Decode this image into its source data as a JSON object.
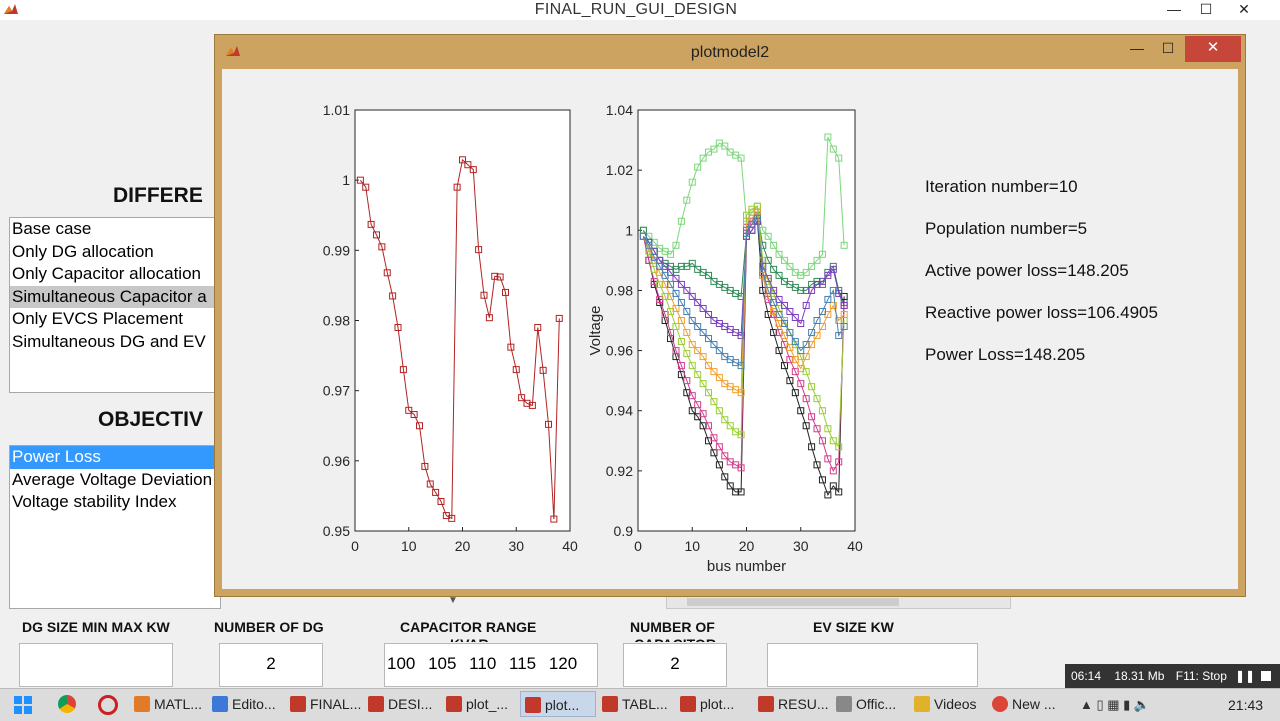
{
  "main_window": {
    "title": "FINAL_RUN_GUI_DESIGN",
    "minimize": "—",
    "maximize": "☐",
    "close": "✕"
  },
  "cases_heading": "DIFFERE",
  "cases": [
    "Base case",
    "Only DG allocation",
    "Only Capacitor allocation",
    "Simultaneous Capacitor a",
    "Only EVCS Placement",
    "Simultaneous DG and EV"
  ],
  "objective_heading": "OBJECTIV",
  "objectives": [
    "Power Loss",
    "Average Voltage Deviation",
    "Voltage stability Index"
  ],
  "fields": {
    "dg_size_label": "DG SIZE MIN MAX KW",
    "dg_size_value": "",
    "num_dg_label": "NUMBER OF DG",
    "num_dg_value": "2",
    "cap_range_label": "CAPACITOR RANGE",
    "cap_range_label2": "KVAR",
    "cap_range_value": "100 105 110 115 120",
    "num_cap_label": "NUMBER OF",
    "num_cap_label2": "CAPACITOR",
    "num_cap_value": "2",
    "ev_size_label": "EV SIZE KW",
    "ev_size_value": ""
  },
  "plot_window": {
    "title": "plotmodel2",
    "info": [
      "Iteration number=10",
      "Population number=5",
      "Active power loss=148.205",
      "Reactive power loss=106.4905",
      "Power Loss=148.205"
    ]
  },
  "chart_data": [
    {
      "type": "line",
      "title": "",
      "xlabel": "",
      "ylabel": "",
      "xlim": [
        0,
        40
      ],
      "ylim": [
        0.95,
        1.01
      ],
      "xticks": [
        "0",
        "10",
        "20",
        "30",
        "40"
      ],
      "yticks": [
        "0.95",
        "0.96",
        "0.97",
        "0.98",
        "0.99",
        "1",
        "1.01"
      ],
      "marker": "square",
      "color": "#b22222",
      "series": [
        {
          "x": [
            1,
            2,
            3,
            4,
            5,
            6,
            7,
            8,
            9,
            10,
            11,
            12,
            13,
            14,
            15,
            16,
            17,
            18,
            19,
            20,
            21,
            22,
            23,
            24,
            25,
            26,
            27,
            28,
            29,
            30,
            31,
            32,
            33,
            34,
            35,
            36,
            37,
            38
          ],
          "y": [
            1.0,
            0.999,
            0.9937,
            0.9922,
            0.9905,
            0.9868,
            0.9835,
            0.979,
            0.973,
            0.9672,
            0.9666,
            0.965,
            0.9592,
            0.9567,
            0.9555,
            0.9542,
            0.9522,
            0.9518,
            0.999,
            1.0029,
            1.0022,
            1.0015,
            0.9901,
            0.9836,
            0.9804,
            0.9863,
            0.9862,
            0.984,
            0.9762,
            0.973,
            0.969,
            0.9682,
            0.9679,
            0.979,
            0.9729,
            0.9652,
            0.9517,
            0.9803
          ]
        }
      ]
    },
    {
      "type": "line",
      "title": "",
      "xlabel": "bus number",
      "ylabel": "Voltage",
      "xlim": [
        0,
        40
      ],
      "ylim": [
        0.9,
        1.04
      ],
      "xticks": [
        "0",
        "10",
        "20",
        "30",
        "40"
      ],
      "yticks": [
        "0.9",
        "0.92",
        "0.94",
        "0.96",
        "0.98",
        "1",
        "1.02",
        "1.04"
      ],
      "marker": "square",
      "series": [
        {
          "color": "#7cd67c",
          "y": [
            1.0,
            0.998,
            0.996,
            0.994,
            0.993,
            0.992,
            0.995,
            1.003,
            1.01,
            1.016,
            1.021,
            1.024,
            1.026,
            1.027,
            1.029,
            1.028,
            1.026,
            1.025,
            1.024,
            1.003,
            1.006,
            1.008,
            1.0,
            0.998,
            0.995,
            0.992,
            0.99,
            0.988,
            0.986,
            0.985,
            0.986,
            0.988,
            0.99,
            0.992,
            1.031,
            1.027,
            1.024,
            0.995
          ]
        },
        {
          "color": "#2e8b57",
          "y": [
            1.0,
            0.996,
            0.993,
            0.99,
            0.989,
            0.988,
            0.987,
            0.988,
            0.988,
            0.989,
            0.987,
            0.986,
            0.985,
            0.983,
            0.982,
            0.981,
            0.98,
            0.979,
            0.978,
            0.999,
            1.002,
            1.005,
            0.995,
            0.99,
            0.987,
            0.985,
            0.983,
            0.982,
            0.981,
            0.98,
            0.98,
            0.982,
            0.983,
            0.982,
            0.986,
            0.988,
            0.98,
            0.976
          ]
        },
        {
          "color": "#222222",
          "y": [
            0.998,
            0.99,
            0.982,
            0.976,
            0.97,
            0.964,
            0.958,
            0.952,
            0.946,
            0.94,
            0.938,
            0.935,
            0.93,
            0.926,
            0.922,
            0.918,
            0.915,
            0.913,
            0.913,
            0.998,
            1.0,
            1.003,
            0.98,
            0.972,
            0.966,
            0.96,
            0.955,
            0.95,
            0.946,
            0.94,
            0.935,
            0.928,
            0.922,
            0.917,
            0.912,
            0.915,
            0.913,
            0.978
          ]
        },
        {
          "color": "#d23c8c",
          "y": [
            0.998,
            0.99,
            0.983,
            0.977,
            0.972,
            0.966,
            0.96,
            0.955,
            0.95,
            0.945,
            0.942,
            0.939,
            0.935,
            0.931,
            0.928,
            0.925,
            0.923,
            0.922,
            0.921,
            1.001,
            1.003,
            1.006,
            0.985,
            0.977,
            0.972,
            0.966,
            0.962,
            0.957,
            0.953,
            0.949,
            0.944,
            0.938,
            0.934,
            0.93,
            0.924,
            0.92,
            0.923,
            0.975
          ]
        },
        {
          "color": "#9acd32",
          "y": [
            0.998,
            0.993,
            0.987,
            0.982,
            0.978,
            0.973,
            0.968,
            0.963,
            0.959,
            0.955,
            0.952,
            0.949,
            0.946,
            0.943,
            0.94,
            0.937,
            0.935,
            0.933,
            0.932,
            1.005,
            1.007,
            1.008,
            0.99,
            0.983,
            0.979,
            0.974,
            0.97,
            0.966,
            0.962,
            0.958,
            0.953,
            0.948,
            0.944,
            0.94,
            0.934,
            0.93,
            0.928,
            0.97
          ]
        },
        {
          "color": "#7b3fbf",
          "y": [
            0.998,
            0.996,
            0.993,
            0.99,
            0.988,
            0.986,
            0.984,
            0.982,
            0.98,
            0.978,
            0.976,
            0.974,
            0.972,
            0.97,
            0.969,
            0.968,
            0.967,
            0.966,
            0.965,
            0.998,
            1.0,
            1.003,
            0.988,
            0.984,
            0.98,
            0.977,
            0.975,
            0.973,
            0.971,
            0.969,
            0.975,
            0.98,
            0.982,
            0.983,
            0.985,
            0.987,
            0.979,
            0.975
          ]
        },
        {
          "color": "#f0a030",
          "y": [
            0.998,
            0.994,
            0.99,
            0.986,
            0.982,
            0.978,
            0.974,
            0.97,
            0.966,
            0.962,
            0.96,
            0.958,
            0.955,
            0.953,
            0.951,
            0.949,
            0.948,
            0.947,
            0.946,
            1.002,
            1.004,
            1.006,
            0.985,
            0.978,
            0.973,
            0.969,
            0.965,
            0.961,
            0.957,
            0.954,
            0.958,
            0.962,
            0.965,
            0.968,
            0.972,
            0.975,
            0.97,
            0.972
          ]
        },
        {
          "color": "#4682b4",
          "y": [
            0.998,
            0.995,
            0.991,
            0.988,
            0.985,
            0.982,
            0.979,
            0.976,
            0.973,
            0.97,
            0.968,
            0.966,
            0.964,
            0.962,
            0.96,
            0.958,
            0.957,
            0.956,
            0.955,
            1.0,
            1.002,
            1.004,
            0.986,
            0.98,
            0.976,
            0.972,
            0.969,
            0.966,
            0.963,
            0.96,
            0.962,
            0.966,
            0.97,
            0.973,
            0.977,
            0.98,
            0.965,
            0.968
          ]
        }
      ]
    }
  ],
  "taskbar": {
    "items": [
      "MATL...",
      "Edito...",
      "FINAL...",
      "DESI...",
      "plot_...",
      "plot...",
      "TABL...",
      "plot...",
      "RESU...",
      "Offic...",
      "Videos",
      "New ..."
    ],
    "time": "21:43"
  },
  "recorder": {
    "elapsed": "06:14",
    "size": "18.31 Mb",
    "hint": "F11: Stop"
  }
}
